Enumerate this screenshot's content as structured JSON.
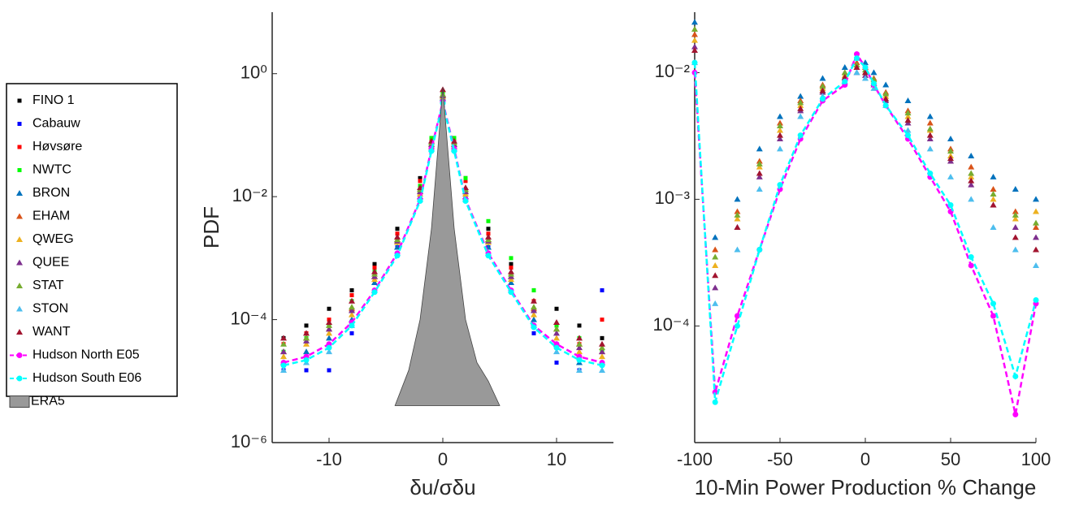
{
  "chart_data": [
    {
      "type": "scatter",
      "ylabel": "PDF",
      "xlabel": "δu/σδu",
      "log_y": true,
      "xlim": [
        -15,
        15
      ],
      "xticks": [
        -10,
        0,
        10
      ],
      "ylim": [
        1e-06,
        10
      ],
      "yticks": [
        {
          "value": 1e-06,
          "label": "10⁻⁶"
        },
        {
          "value": 0.0001,
          "label": "10⁻⁴"
        },
        {
          "value": 0.01,
          "label": "10⁻²"
        },
        {
          "value": 1,
          "label": "10⁰"
        }
      ],
      "x": [
        -14,
        -12,
        -10,
        -8,
        -6,
        -4,
        -2,
        -1,
        0,
        1,
        2,
        4,
        6,
        8,
        10,
        12,
        14
      ],
      "series": [
        {
          "name": "FINO 1",
          "color": "#000000",
          "marker": "square",
          "values": [
            5e-05,
            8e-05,
            0.00015,
            0.0003,
            0.0008,
            0.003,
            0.02,
            0.08,
            0.5,
            0.08,
            0.02,
            0.003,
            0.0008,
            0.0003,
            0.00015,
            8e-05,
            5e-05
          ]
        },
        {
          "name": "Cabauw",
          "color": "#0000ff",
          "marker": "square",
          "values": [
            1.5e-05,
            1.5e-05,
            1.5e-05,
            6e-05,
            0.0003,
            0.0015,
            0.01,
            0.06,
            0.3,
            0.06,
            0.01,
            0.0015,
            0.0003,
            6e-05,
            2e-05,
            1.5e-05,
            0.0003
          ]
        },
        {
          "name": "Høvsøre",
          "color": "#ff0000",
          "marker": "square",
          "values": [
            4e-05,
            6e-05,
            0.0001,
            0.00025,
            0.0007,
            0.0025,
            0.018,
            0.08,
            0.45,
            0.08,
            0.018,
            0.0025,
            0.0007,
            0.0002,
            8e-05,
            4e-05,
            0.0001
          ]
        },
        {
          "name": "NWTC",
          "color": "#00ff00",
          "marker": "square",
          "values": [
            3e-05,
            5e-05,
            8e-05,
            0.0002,
            0.0006,
            0.002,
            0.015,
            0.09,
            0.5,
            0.09,
            0.02,
            0.004,
            0.001,
            0.0003,
            8e-05,
            5e-05,
            3e-05
          ]
        },
        {
          "name": "BRON",
          "color": "#0072bd",
          "marker": "triangle",
          "values": [
            2e-05,
            3e-05,
            5e-05,
            0.0001,
            0.0004,
            0.0015,
            0.01,
            0.06,
            0.4,
            0.06,
            0.01,
            0.0015,
            0.0004,
            0.0001,
            4e-05,
            2e-05,
            2e-05
          ]
        },
        {
          "name": "EHAM",
          "color": "#d95319",
          "marker": "triangle",
          "values": [
            3e-05,
            5e-05,
            7e-05,
            0.00015,
            0.0005,
            0.002,
            0.012,
            0.07,
            0.45,
            0.07,
            0.012,
            0.002,
            0.0005,
            0.00015,
            7e-05,
            4e-05,
            3e-05
          ]
        },
        {
          "name": "QWEG",
          "color": "#edb120",
          "marker": "triangle",
          "values": [
            2.5e-05,
            4e-05,
            6e-05,
            0.00012,
            0.00045,
            0.0018,
            0.011,
            0.065,
            0.42,
            0.065,
            0.011,
            0.0018,
            0.00045,
            0.00012,
            5e-05,
            3e-05,
            2.5e-05
          ]
        },
        {
          "name": "QUEE",
          "color": "#7e2f8e",
          "marker": "triangle",
          "values": [
            3e-05,
            4.5e-05,
            7e-05,
            0.00014,
            0.0005,
            0.0019,
            0.012,
            0.07,
            0.44,
            0.07,
            0.012,
            0.0019,
            0.0005,
            0.00014,
            6e-05,
            3.5e-05,
            3e-05
          ]
        },
        {
          "name": "STAT",
          "color": "#77ac30",
          "marker": "triangle",
          "values": [
            4e-05,
            5e-05,
            8e-05,
            0.00016,
            0.00055,
            0.002,
            0.013,
            0.075,
            0.46,
            0.075,
            0.013,
            0.002,
            0.00055,
            0.00016,
            7e-05,
            4e-05,
            3.5e-05
          ]
        },
        {
          "name": "STON",
          "color": "#4dbeee",
          "marker": "triangle",
          "values": [
            1.5e-05,
            2e-05,
            3e-05,
            8e-05,
            0.0003,
            0.0012,
            0.009,
            0.06,
            0.38,
            0.06,
            0.009,
            0.0012,
            0.0003,
            8e-05,
            3e-05,
            1.5e-05,
            1.5e-05
          ]
        },
        {
          "name": "WANT",
          "color": "#a2142f",
          "marker": "triangle",
          "values": [
            5e-05,
            6e-05,
            9e-05,
            0.0002,
            0.0006,
            0.0022,
            0.014,
            0.08,
            0.55,
            0.08,
            0.014,
            0.0022,
            0.0006,
            0.0002,
            9e-05,
            5e-05,
            4e-05
          ]
        },
        {
          "name": "Hudson North E05",
          "color": "#ff00ff",
          "marker": "circle",
          "line": "dashed",
          "values": [
            2e-05,
            2.5e-05,
            4e-05,
            9e-05,
            0.0003,
            0.0012,
            0.009,
            0.06,
            0.35,
            0.06,
            0.009,
            0.0012,
            0.0003,
            8e-05,
            4e-05,
            2.5e-05,
            2e-05
          ]
        },
        {
          "name": "Hudson South E06",
          "color": "#00ffff",
          "marker": "circle",
          "line": "dashed",
          "values": [
            1.8e-05,
            2.2e-05,
            3.5e-05,
            8e-05,
            0.00028,
            0.0011,
            0.0085,
            0.055,
            0.33,
            0.055,
            0.0085,
            0.0011,
            0.00028,
            7.5e-05,
            3.5e-05,
            2.2e-05,
            1.8e-05
          ]
        },
        {
          "name": "ERA5",
          "color": "#999999",
          "marker": "area",
          "x": [
            -4.2,
            -3,
            -2,
            -1,
            0,
            1,
            2,
            3,
            4,
            5
          ],
          "values": [
            4e-06,
            1.5e-05,
            0.0001,
            0.003,
            0.6,
            0.003,
            0.0001,
            2e-05,
            1e-05,
            4e-06
          ]
        }
      ]
    },
    {
      "type": "scatter",
      "xlabel": "10-Min Power Production % Change",
      "log_y": true,
      "xlim": [
        -100,
        100
      ],
      "xticks": [
        -100,
        -50,
        0,
        50,
        100
      ],
      "ylim": [
        1.2e-05,
        0.03
      ],
      "yticks": [
        {
          "value": 0.0001,
          "label": "10⁻⁴"
        },
        {
          "value": 0.001,
          "label": "10⁻³"
        },
        {
          "value": 0.01,
          "label": "10⁻²"
        }
      ],
      "x": [
        -100,
        -88,
        -75,
        -62,
        -50,
        -38,
        -25,
        -12,
        -5,
        0,
        5,
        12,
        25,
        38,
        50,
        62,
        75,
        88,
        100
      ],
      "series": [
        {
          "color": "#0072bd",
          "marker": "triangle",
          "values": [
            0.025,
            0.0005,
            0.001,
            0.0025,
            0.0045,
            0.0065,
            0.009,
            0.011,
            0.013,
            0.012,
            0.01,
            0.008,
            0.006,
            0.0045,
            0.003,
            0.0022,
            0.0015,
            0.0012,
            0.001
          ]
        },
        {
          "color": "#d95319",
          "marker": "triangle",
          "values": [
            0.02,
            0.0004,
            0.0008,
            0.002,
            0.004,
            0.006,
            0.008,
            0.01,
            0.012,
            0.011,
            0.009,
            0.007,
            0.005,
            0.004,
            0.0025,
            0.0018,
            0.0012,
            0.0008,
            0.0006
          ]
        },
        {
          "color": "#edb120",
          "marker": "triangle",
          "values": [
            0.018,
            0.0003,
            0.0007,
            0.0018,
            0.0035,
            0.0055,
            0.0075,
            0.0095,
            0.011,
            0.01,
            0.0085,
            0.0065,
            0.0045,
            0.0035,
            0.0022,
            0.0015,
            0.001,
            0.0007,
            0.0008
          ]
        },
        {
          "color": "#7e2f8e",
          "marker": "triangle",
          "values": [
            0.016,
            0.0002,
            0.0006,
            0.0015,
            0.003,
            0.005,
            0.007,
            0.009,
            0.01,
            0.0095,
            0.008,
            0.006,
            0.004,
            0.003,
            0.002,
            0.0013,
            0.0009,
            0.0006,
            0.0005
          ]
        },
        {
          "color": "#77ac30",
          "marker": "triangle",
          "values": [
            0.022,
            0.00035,
            0.00075,
            0.0019,
            0.0038,
            0.0058,
            0.0078,
            0.01,
            0.0115,
            0.0105,
            0.0088,
            0.0068,
            0.0048,
            0.0036,
            0.0024,
            0.0016,
            0.0011,
            0.00075,
            0.00065
          ]
        },
        {
          "color": "#4dbeee",
          "marker": "triangle",
          "values": [
            0.012,
            0.00015,
            0.0004,
            0.0012,
            0.0025,
            0.0045,
            0.0065,
            0.0085,
            0.01,
            0.009,
            0.0075,
            0.0055,
            0.0035,
            0.0025,
            0.0015,
            0.001,
            0.0006,
            0.0004,
            0.0003
          ]
        },
        {
          "color": "#a2142f",
          "marker": "triangle",
          "values": [
            0.015,
            0.00025,
            0.0006,
            0.0016,
            0.0032,
            0.0052,
            0.0072,
            0.0092,
            0.011,
            0.01,
            0.0082,
            0.0062,
            0.0042,
            0.0032,
            0.0021,
            0.0014,
            0.0009,
            0.0005,
            0.0004
          ]
        },
        {
          "color": "#ff00ff",
          "marker": "circle",
          "line": "dashed",
          "values": [
            0.01,
            3e-05,
            0.00012,
            0.0004,
            0.0012,
            0.003,
            0.006,
            0.008,
            0.014,
            0.011,
            0.008,
            0.0055,
            0.003,
            0.0015,
            0.0008,
            0.0003,
            0.00012,
            2e-05,
            0.00015
          ]
        },
        {
          "color": "#00ffff",
          "marker": "circle",
          "line": "dashed",
          "values": [
            0.012,
            2.5e-05,
            0.0001,
            0.0004,
            0.0013,
            0.0032,
            0.0062,
            0.0085,
            0.013,
            0.011,
            0.0082,
            0.0055,
            0.0032,
            0.0016,
            0.0009,
            0.00035,
            0.00015,
            4e-05,
            0.00016
          ]
        }
      ]
    }
  ]
}
